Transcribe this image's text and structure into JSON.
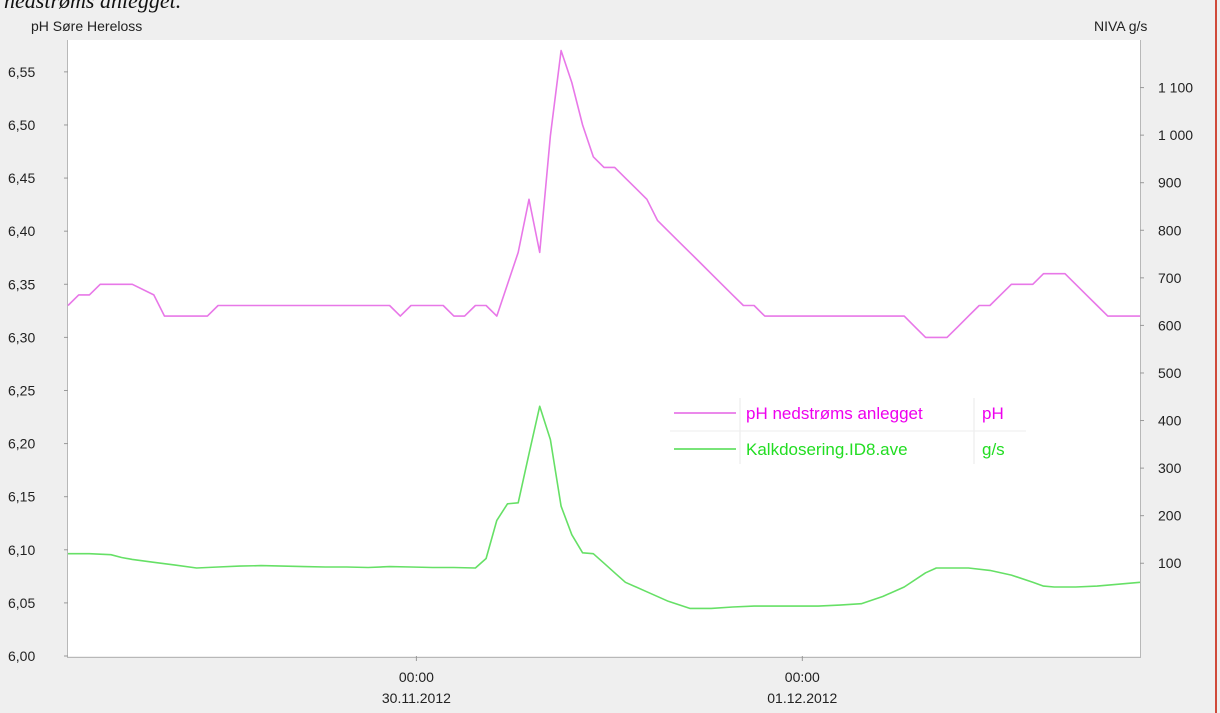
{
  "caption": "nedstrøms anlegget.",
  "header": {
    "left_title": "pH Søre Hereloss",
    "right_title": "NIVA g/s"
  },
  "colors": {
    "ph_series": "#e878e8",
    "kalk_series": "#66e066",
    "ph_legend": "#ee00ee",
    "kalk_legend": "#22dd22",
    "background": "#efefef",
    "plot_bg": "#ffffff",
    "edge_line": "#d04a3a"
  },
  "chart_data": {
    "type": "line",
    "title": "",
    "x_ticks": [
      {
        "time": "00:00",
        "date": "30.11.2012"
      },
      {
        "time": "00:00",
        "date": "01.12.2012"
      }
    ],
    "y_left": {
      "label": "pH",
      "range": [
        6.0,
        6.58
      ],
      "ticks": [
        "6,00",
        "6,05",
        "6,10",
        "6,15",
        "6,20",
        "6,25",
        "6,30",
        "6,35",
        "6,40",
        "6,45",
        "6,50",
        "6,55"
      ]
    },
    "y_right": {
      "label": "g/s",
      "range": [
        -95,
        1200
      ],
      "ticks": [
        "100",
        "200",
        "300",
        "400",
        "500",
        "600",
        "700",
        "800",
        "900",
        "1 000",
        "1 100"
      ]
    },
    "x_range": [
      0,
      100
    ],
    "grid": false,
    "legend_position": "center-right",
    "series": [
      {
        "name": "pH nedstrøms anlegget",
        "unit": "pH",
        "axis": "left",
        "x": [
          0,
          1,
          2,
          3,
          4,
          5,
          6,
          8,
          9,
          10,
          11,
          12,
          13,
          14,
          15,
          16,
          17,
          18,
          19,
          20,
          21,
          22,
          23,
          24,
          25,
          26,
          27,
          28,
          29,
          30,
          31,
          32,
          33,
          34,
          35,
          36,
          37,
          38,
          39,
          40,
          41,
          42,
          43,
          44,
          45,
          46,
          47,
          48,
          49,
          50,
          51,
          52,
          53,
          54,
          55,
          56,
          57,
          58,
          59,
          60,
          61,
          62,
          63,
          64,
          65,
          66,
          67,
          68,
          69,
          70,
          71,
          72,
          73,
          74,
          75,
          76,
          77,
          78,
          79,
          80,
          81,
          82,
          83,
          84,
          85,
          86,
          87,
          88,
          89,
          90,
          91,
          92,
          93,
          94,
          95,
          96,
          97,
          98,
          99,
          100
        ],
        "y": [
          6.33,
          6.34,
          6.34,
          6.35,
          6.35,
          6.35,
          6.35,
          6.34,
          6.32,
          6.32,
          6.32,
          6.32,
          6.32,
          6.33,
          6.33,
          6.33,
          6.33,
          6.33,
          6.33,
          6.33,
          6.33,
          6.33,
          6.33,
          6.33,
          6.33,
          6.33,
          6.33,
          6.33,
          6.33,
          6.33,
          6.32,
          6.33,
          6.33,
          6.33,
          6.33,
          6.32,
          6.32,
          6.33,
          6.33,
          6.32,
          6.35,
          6.38,
          6.43,
          6.38,
          6.49,
          6.57,
          6.54,
          6.5,
          6.47,
          6.46,
          6.46,
          6.45,
          6.44,
          6.43,
          6.41,
          6.4,
          6.39,
          6.38,
          6.37,
          6.36,
          6.35,
          6.34,
          6.33,
          6.33,
          6.32,
          6.32,
          6.32,
          6.32,
          6.32,
          6.32,
          6.32,
          6.32,
          6.32,
          6.32,
          6.32,
          6.32,
          6.32,
          6.32,
          6.31,
          6.3,
          6.3,
          6.3,
          6.31,
          6.32,
          6.33,
          6.33,
          6.34,
          6.35,
          6.35,
          6.35,
          6.36,
          6.36,
          6.36,
          6.35,
          6.34,
          6.33,
          6.32,
          6.32,
          6.32,
          6.32
        ]
      },
      {
        "name": "Kalkdosering.ID8.ave",
        "unit": "g/s",
        "axis": "right",
        "x": [
          0,
          2,
          4,
          5,
          6,
          8,
          10,
          12,
          14,
          16,
          18,
          20,
          22,
          24,
          26,
          28,
          30,
          32,
          34,
          36,
          38,
          39,
          40,
          41,
          42,
          43,
          44,
          45,
          46,
          47,
          48,
          49,
          50,
          51,
          52,
          54,
          56,
          58,
          60,
          62,
          64,
          66,
          68,
          70,
          72,
          74,
          76,
          78,
          80,
          81,
          82,
          84,
          86,
          88,
          90,
          91,
          92,
          94,
          96,
          98,
          100
        ],
        "y": [
          120,
          120,
          118,
          112,
          108,
          102,
          96,
          90,
          92,
          94,
          95,
          94,
          93,
          92,
          92,
          91,
          93,
          92,
          91,
          91,
          90,
          110,
          190,
          225,
          227,
          330,
          430,
          360,
          220,
          160,
          122,
          120,
          100,
          80,
          60,
          40,
          20,
          5,
          5,
          8,
          10,
          10,
          10,
          10,
          12,
          15,
          30,
          50,
          80,
          90,
          90,
          90,
          85,
          75,
          60,
          52,
          50,
          50,
          52,
          56,
          60
        ]
      }
    ]
  }
}
